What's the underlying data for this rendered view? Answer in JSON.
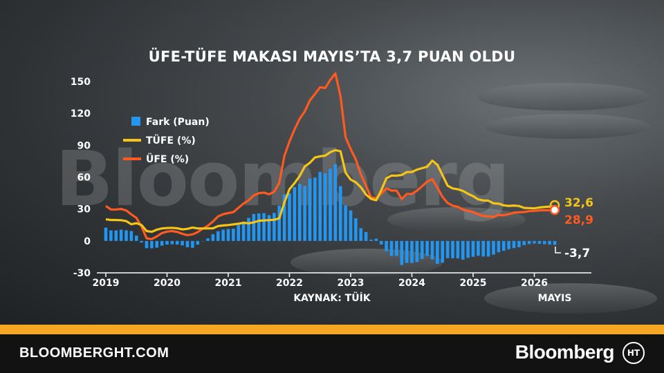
{
  "title": "ÜFE-TÜFE MAKASI MAYIS’TA 3,7 PUAN OLDU",
  "watermark": "Bloomberg",
  "source": "KAYNAK: TÜİK",
  "footer": {
    "url": "BLOOMBERGHT.COM",
    "brand": "Bloomberg",
    "logo_text": "HT"
  },
  "colors": {
    "fark": "#2196f3",
    "tufe": "#f5c518",
    "ufe": "#ff5a1f",
    "accent": "#f5a623",
    "footer_bg": "#121212"
  },
  "chart_data": {
    "type": "line",
    "title": "ÜFE-TÜFE MAKASI MAYIS’TA 3,7 PUAN OLDU",
    "ylim": [
      -30,
      150
    ],
    "yticks": [
      "150",
      "120",
      "90",
      "60",
      "30",
      "0",
      "-30"
    ],
    "xticks": [
      "2019",
      "2020",
      "2021",
      "2022",
      "2023",
      "2024",
      "2025",
      "2026"
    ],
    "x_end_label": "MAYIS",
    "legend": [
      "Fark (Puan)",
      "TÜFE (%)",
      "ÜFE (%)"
    ],
    "legend_position": "top-left",
    "grid": false,
    "start": "2019-01",
    "end": "2026-05",
    "series": [
      {
        "name": "TÜFE (%)",
        "type": "line",
        "values": [
          20.4,
          19.7,
          19.7,
          19.5,
          18.7,
          15.7,
          16.7,
          15.0,
          9.3,
          8.6,
          10.6,
          11.8,
          12.2,
          12.4,
          11.9,
          10.9,
          11.4,
          12.6,
          11.8,
          11.8,
          11.8,
          11.9,
          14.0,
          14.6,
          15.0,
          15.6,
          16.2,
          17.1,
          16.6,
          17.5,
          19.0,
          19.3,
          19.6,
          19.9,
          21.3,
          36.1,
          48.7,
          54.4,
          61.1,
          70.0,
          73.5,
          78.6,
          79.6,
          80.2,
          83.5,
          85.5,
          84.4,
          64.3,
          57.7,
          55.2,
          50.5,
          43.7,
          39.6,
          38.2,
          47.8,
          58.9,
          61.5,
          61.4,
          62.0,
          64.8,
          64.9,
          67.1,
          68.5,
          69.8,
          75.5,
          71.6,
          61.8,
          52.0,
          49.4,
          48.6,
          47.1,
          44.4,
          42.1,
          39.1,
          38.1,
          37.9,
          35.4,
          35.1,
          33.5,
          33.0,
          33.3,
          32.9,
          31.1,
          30.9,
          30.7,
          31.5,
          32.0,
          32.3,
          32.6
        ]
      },
      {
        "name": "ÜFE (%)",
        "type": "line",
        "values": [
          32.9,
          29.6,
          29.6,
          30.1,
          28.7,
          25.0,
          21.7,
          13.5,
          2.5,
          1.7,
          4.3,
          7.4,
          8.8,
          9.3,
          8.5,
          6.7,
          5.5,
          6.2,
          8.3,
          11.5,
          14.3,
          18.2,
          23.1,
          25.2,
          26.2,
          27.1,
          31.2,
          35.2,
          38.3,
          42.9,
          44.9,
          45.5,
          43.9,
          46.3,
          54.6,
          79.9,
          93.5,
          105.0,
          114.9,
          121.8,
          132.2,
          138.3,
          144.6,
          143.8,
          151.5,
          157.7,
          136.0,
          97.7,
          86.5,
          76.6,
          62.5,
          52.1,
          40.8,
          40.4,
          44.5,
          49.4,
          47.4,
          47.4,
          39.4,
          44.2,
          44.2,
          47.3,
          51.5,
          55.7,
          58.1,
          50.1,
          41.4,
          35.8,
          33.1,
          32.2,
          29.5,
          28.5,
          27.2,
          25.2,
          23.5,
          23.2,
          22.5,
          24.5,
          24.2,
          25.2,
          26.6,
          27.0,
          27.2,
          28.0,
          28.3,
          28.8,
          28.9,
          28.9,
          28.9
        ]
      },
      {
        "name": "Fark (Puan)",
        "type": "bar",
        "values": [
          12.5,
          9.9,
          9.9,
          10.6,
          10.0,
          9.3,
          5.0,
          -1.5,
          -6.8,
          -6.9,
          -6.3,
          -4.4,
          -3.4,
          -3.1,
          -3.4,
          -4.2,
          -5.9,
          -6.4,
          -3.5,
          -0.3,
          2.5,
          6.3,
          9.1,
          10.6,
          11.2,
          11.5,
          15.0,
          18.1,
          21.7,
          25.4,
          25.9,
          26.2,
          24.3,
          26.4,
          33.3,
          43.8,
          44.8,
          50.6,
          53.8,
          51.8,
          58.7,
          59.7,
          65.0,
          63.6,
          68.0,
          72.2,
          51.6,
          33.4,
          28.8,
          21.4,
          12.0,
          8.4,
          1.2,
          2.2,
          -3.3,
          -9.5,
          -14.1,
          -14.0,
          -22.6,
          -20.6,
          -20.7,
          -19.8,
          -17.0,
          -14.1,
          -17.4,
          -21.5,
          -20.4,
          -16.2,
          -16.3,
          -16.4,
          -17.6,
          -15.9,
          -14.9,
          -13.9,
          -14.6,
          -14.7,
          -12.9,
          -10.6,
          -9.3,
          -7.8,
          -6.7,
          -5.9,
          -3.9,
          -2.9,
          -2.4,
          -2.7,
          -3.1,
          -3.4,
          -3.7
        ]
      }
    ],
    "end_labels": {
      "tufe": "32,6",
      "ufe": "28,9",
      "fark": "-3,7"
    }
  }
}
